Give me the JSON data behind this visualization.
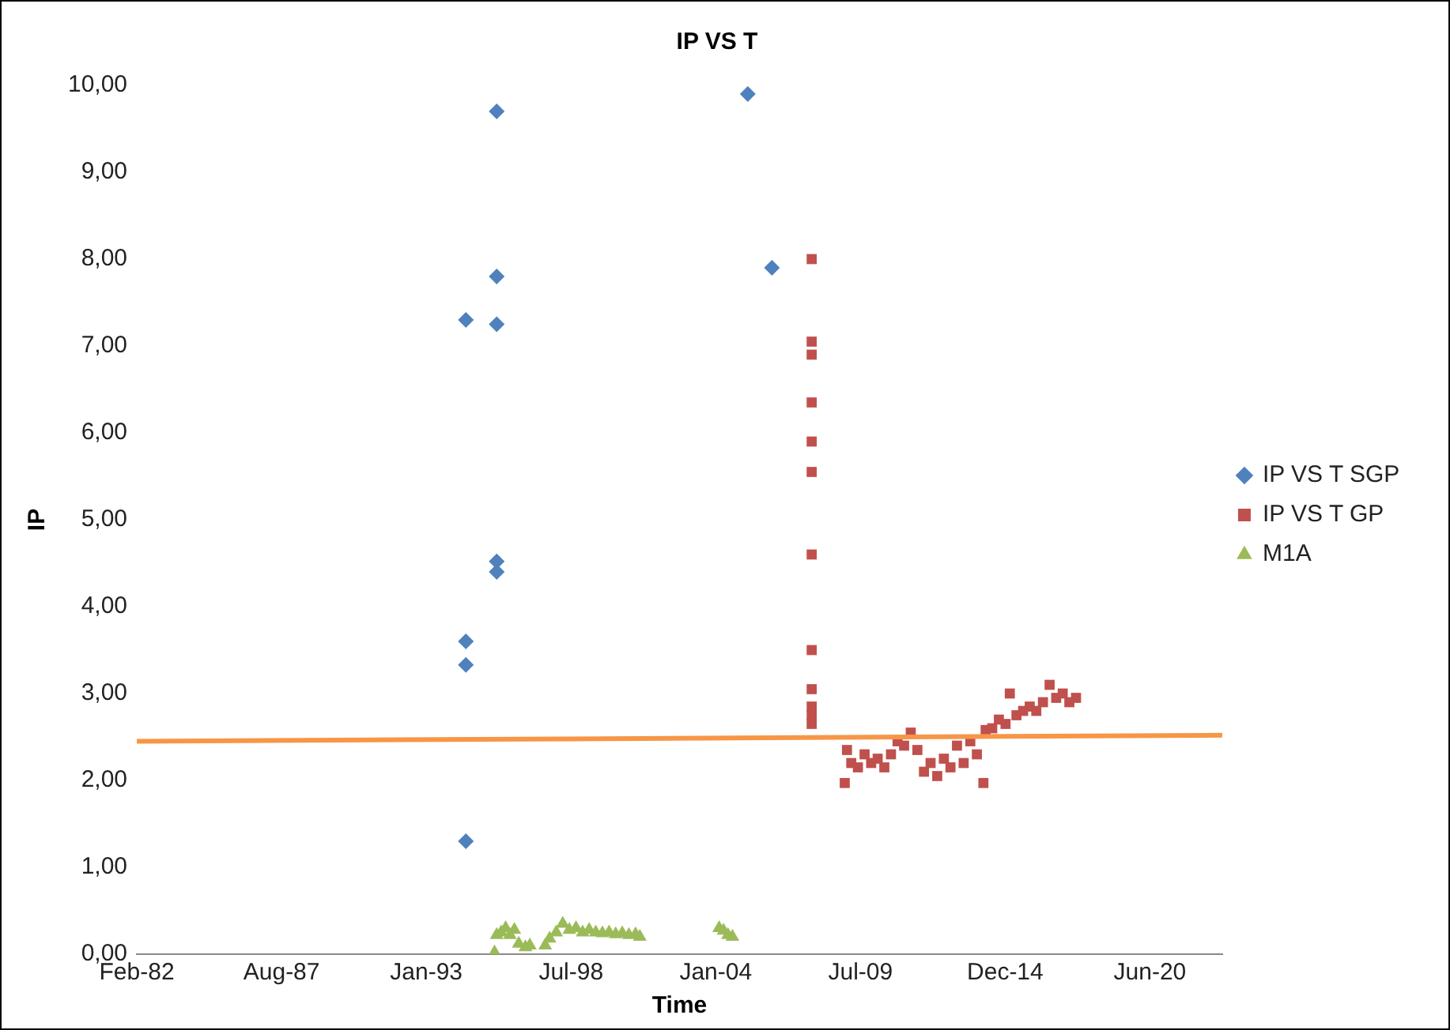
{
  "chart_data": {
    "type": "scatter",
    "title": "IP VS T",
    "xlabel": "Time",
    "ylabel": "IP",
    "xlim": [
      "1982-02-18",
      "2023-03-15"
    ],
    "xticks": [
      {
        "value": "1982-02-18",
        "label": "Feb-82"
      },
      {
        "value": "1987-08-11",
        "label": "Aug-87"
      },
      {
        "value": "1993-01-31",
        "label": "Jan-93"
      },
      {
        "value": "1998-07-24",
        "label": "Jul-98"
      },
      {
        "value": "2004-01-14",
        "label": "Jan-04"
      },
      {
        "value": "2009-07-06",
        "label": "Jul-09"
      },
      {
        "value": "2014-12-27",
        "label": "Dec-14"
      },
      {
        "value": "2020-06-18",
        "label": "Jun-20"
      }
    ],
    "ylim": [
      0,
      10
    ],
    "yticks": [
      {
        "value": 0,
        "label": "0,00"
      },
      {
        "value": 1,
        "label": "1,00"
      },
      {
        "value": 2,
        "label": "2,00"
      },
      {
        "value": 3,
        "label": "3,00"
      },
      {
        "value": 4,
        "label": "4,00"
      },
      {
        "value": 5,
        "label": "5,00"
      },
      {
        "value": 6,
        "label": "6,00"
      },
      {
        "value": 7,
        "label": "7,00"
      },
      {
        "value": 8,
        "label": "8,00"
      },
      {
        "value": 9,
        "label": "9,00"
      },
      {
        "value": 10,
        "label": "10,00"
      }
    ],
    "grid": false,
    "legend": "right",
    "series": [
      {
        "name": "IP VS T SGP",
        "color": "#4f81bd",
        "marker": "diamond",
        "x": [
          "1994-08",
          "1994-08",
          "1994-08",
          "1994-08",
          "1995-10",
          "1995-10",
          "1995-10",
          "1995-10",
          "1995-10",
          "2005-04",
          "2006-03"
        ],
        "values": [
          7.3,
          3.6,
          3.33,
          1.3,
          9.7,
          7.8,
          7.25,
          4.52,
          4.4,
          9.9,
          7.9
        ]
      },
      {
        "name": "IP VS T GP",
        "color": "#c0504d",
        "marker": "square",
        "x": [
          "2007-09",
          "2007-09",
          "2007-09",
          "2007-09",
          "2007-09",
          "2007-09",
          "2007-09",
          "2007-09",
          "2007-09",
          "2007-09",
          "2007-09",
          "2007-09",
          "2008-12",
          "2009-01",
          "2009-03",
          "2009-06",
          "2009-09",
          "2009-12",
          "2010-03",
          "2010-06",
          "2010-09",
          "2010-12",
          "2011-03",
          "2011-06",
          "2011-09",
          "2011-12",
          "2012-03",
          "2012-06",
          "2012-09",
          "2012-12",
          "2013-03",
          "2013-06",
          "2013-09",
          "2013-12",
          "2014-03",
          "2014-04",
          "2014-07",
          "2014-10",
          "2015-01",
          "2015-03",
          "2015-06",
          "2015-09",
          "2015-12",
          "2016-03",
          "2016-06",
          "2016-09",
          "2016-12",
          "2017-03",
          "2017-06",
          "2017-09"
        ],
        "values": [
          8.0,
          7.05,
          6.9,
          6.35,
          5.9,
          5.55,
          4.6,
          3.5,
          3.05,
          2.85,
          2.75,
          2.65,
          1.97,
          2.35,
          2.2,
          2.15,
          2.3,
          2.2,
          2.25,
          2.15,
          2.3,
          2.45,
          2.4,
          2.55,
          2.35,
          2.1,
          2.2,
          2.05,
          2.25,
          2.15,
          2.4,
          2.2,
          2.45,
          2.3,
          1.97,
          2.58,
          2.6,
          2.7,
          2.65,
          3.0,
          2.75,
          2.8,
          2.85,
          2.8,
          2.9,
          3.1,
          2.95,
          3.0,
          2.9,
          2.95
        ]
      },
      {
        "name": "M1A",
        "color": "#9bbb59",
        "marker": "triangle",
        "x": [
          "1995-09",
          "1995-10",
          "1995-12",
          "1996-02",
          "1996-04",
          "1996-06",
          "1996-08",
          "1996-11",
          "1997-01",
          "1997-08",
          "1997-10",
          "1998-01",
          "1998-04",
          "1998-07",
          "1998-10",
          "1999-01",
          "1999-04",
          "1999-07",
          "1999-10",
          "2000-01",
          "2000-04",
          "2000-07",
          "2000-10",
          "2001-01",
          "2001-03",
          "2004-03",
          "2004-05",
          "2004-07",
          "2004-09"
        ],
        "values": [
          0.02,
          0.22,
          0.25,
          0.3,
          0.22,
          0.28,
          0.12,
          0.08,
          0.1,
          0.1,
          0.18,
          0.25,
          0.35,
          0.28,
          0.3,
          0.25,
          0.28,
          0.25,
          0.24,
          0.25,
          0.23,
          0.24,
          0.22,
          0.23,
          0.2,
          0.3,
          0.27,
          0.22,
          0.2
        ]
      },
      {
        "type": "line",
        "color": "#f79646",
        "marker": "none",
        "line_style": "solid",
        "x": [
          "1982-02-18",
          "2023-03-15"
        ],
        "values": [
          2.45,
          2.52
        ]
      }
    ]
  }
}
